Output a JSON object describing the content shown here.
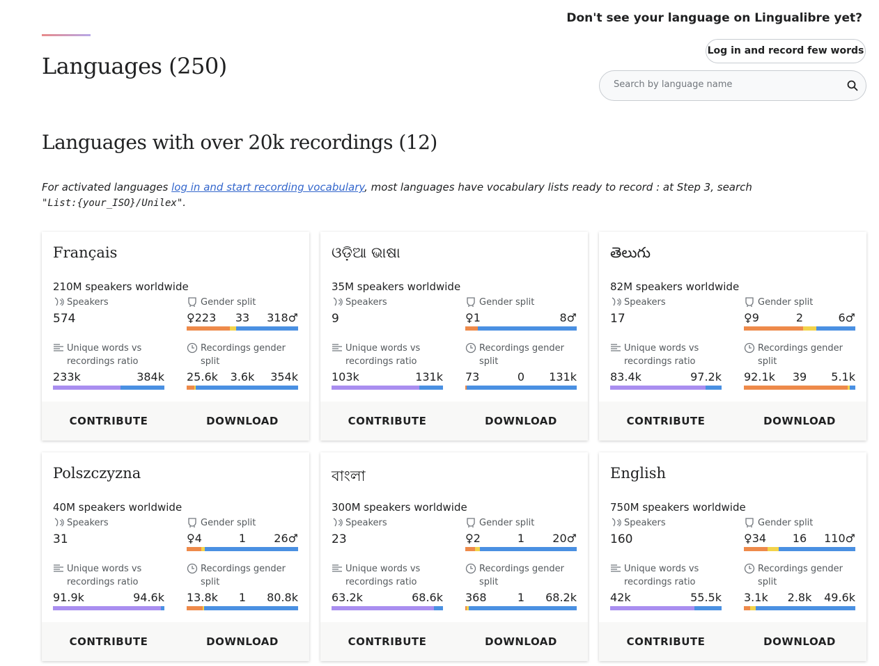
{
  "header": {
    "title": "Languages (250)",
    "cta_heading": "Don't see your language on Lingualibre yet?",
    "login_button": "Log in and record few words",
    "search_placeholder": "Search by language name"
  },
  "section": {
    "title": "Languages with over 20k recordings (12)",
    "info_prefix": "For activated languages ",
    "info_link": "log in and start recording vocabulary",
    "info_suffix": ", most languages have vocabulary lists ready to record : at Step 3, search",
    "info_code": "\"List:{your_ISO}/Unilex\"",
    "info_end": "."
  },
  "labels": {
    "speakers": "Speakers",
    "gender_split": "Gender split",
    "unique_words": "Unique words vs recordings ratio",
    "rec_gender": "Recordings gender split",
    "contribute": "CONTRIBUTE",
    "download": "DOWNLOAD"
  },
  "colors": {
    "female": "#ee8a4a",
    "other": "#f3d34a",
    "male": "#4a90e2",
    "unique": "#a98ef0"
  },
  "cards": [
    {
      "name": "Français",
      "speakers_ww": "210M speakers worldwide",
      "speakers": "574",
      "gender": {
        "f": "♀223",
        "o": "33",
        "m": "318♂",
        "fv": 223,
        "ov": 33,
        "mv": 318
      },
      "words": {
        "u": "233k",
        "r": "384k",
        "uv": 233,
        "rv": 384
      },
      "rec": {
        "f": "25.6k",
        "o": "3.6k",
        "m": "354k",
        "fv": 25.6,
        "ov": 3.6,
        "mv": 354
      }
    },
    {
      "name": "ଓଡ଼ିଆ ଭାଷା",
      "speakers_ww": "35M speakers worldwide",
      "speakers": "9",
      "gender": {
        "f": "♀1",
        "o": "",
        "m": "8♂",
        "fv": 1,
        "ov": 0,
        "mv": 8
      },
      "words": {
        "u": "103k",
        "r": "131k",
        "uv": 103,
        "rv": 131
      },
      "rec": {
        "f": "73",
        "o": "0",
        "m": "131k",
        "fv": 0.073,
        "ov": 0,
        "mv": 131
      }
    },
    {
      "name": "తెలుగు",
      "speakers_ww": "82M speakers worldwide",
      "speakers": "17",
      "gender": {
        "f": "♀9",
        "o": "2",
        "m": "6♂",
        "fv": 9,
        "ov": 2,
        "mv": 6
      },
      "words": {
        "u": "83.4k",
        "r": "97.2k",
        "uv": 83.4,
        "rv": 97.2
      },
      "rec": {
        "f": "92.1k",
        "o": "39",
        "m": "5.1k",
        "fv": 92.1,
        "ov": 0.039,
        "mv": 5.1
      }
    },
    {
      "name": "Polszczyzna",
      "speakers_ww": "40M speakers worldwide",
      "speakers": "31",
      "gender": {
        "f": "♀4",
        "o": "1",
        "m": "26♂",
        "fv": 4,
        "ov": 1,
        "mv": 26
      },
      "words": {
        "u": "91.9k",
        "r": "94.6k",
        "uv": 91.9,
        "rv": 94.6
      },
      "rec": {
        "f": "13.8k",
        "o": "1",
        "m": "80.8k",
        "fv": 13.8,
        "ov": 0.001,
        "mv": 80.8
      }
    },
    {
      "name": "বাংলা",
      "speakers_ww": "300M speakers worldwide",
      "speakers": "23",
      "gender": {
        "f": "♀2",
        "o": "1",
        "m": "20♂",
        "fv": 2,
        "ov": 1,
        "mv": 20
      },
      "words": {
        "u": "63.2k",
        "r": "68.6k",
        "uv": 63.2,
        "rv": 68.6
      },
      "rec": {
        "f": "368",
        "o": "1",
        "m": "68.2k",
        "fv": 0.368,
        "ov": 0.001,
        "mv": 68.2
      }
    },
    {
      "name": "English",
      "speakers_ww": "750M speakers worldwide",
      "speakers": "160",
      "gender": {
        "f": "♀34",
        "o": "16",
        "m": "110♂",
        "fv": 34,
        "ov": 16,
        "mv": 110
      },
      "words": {
        "u": "42k",
        "r": "55.5k",
        "uv": 42,
        "rv": 55.5
      },
      "rec": {
        "f": "3.1k",
        "o": "2.8k",
        "m": "49.6k",
        "fv": 3.1,
        "ov": 2.8,
        "mv": 49.6
      }
    }
  ]
}
